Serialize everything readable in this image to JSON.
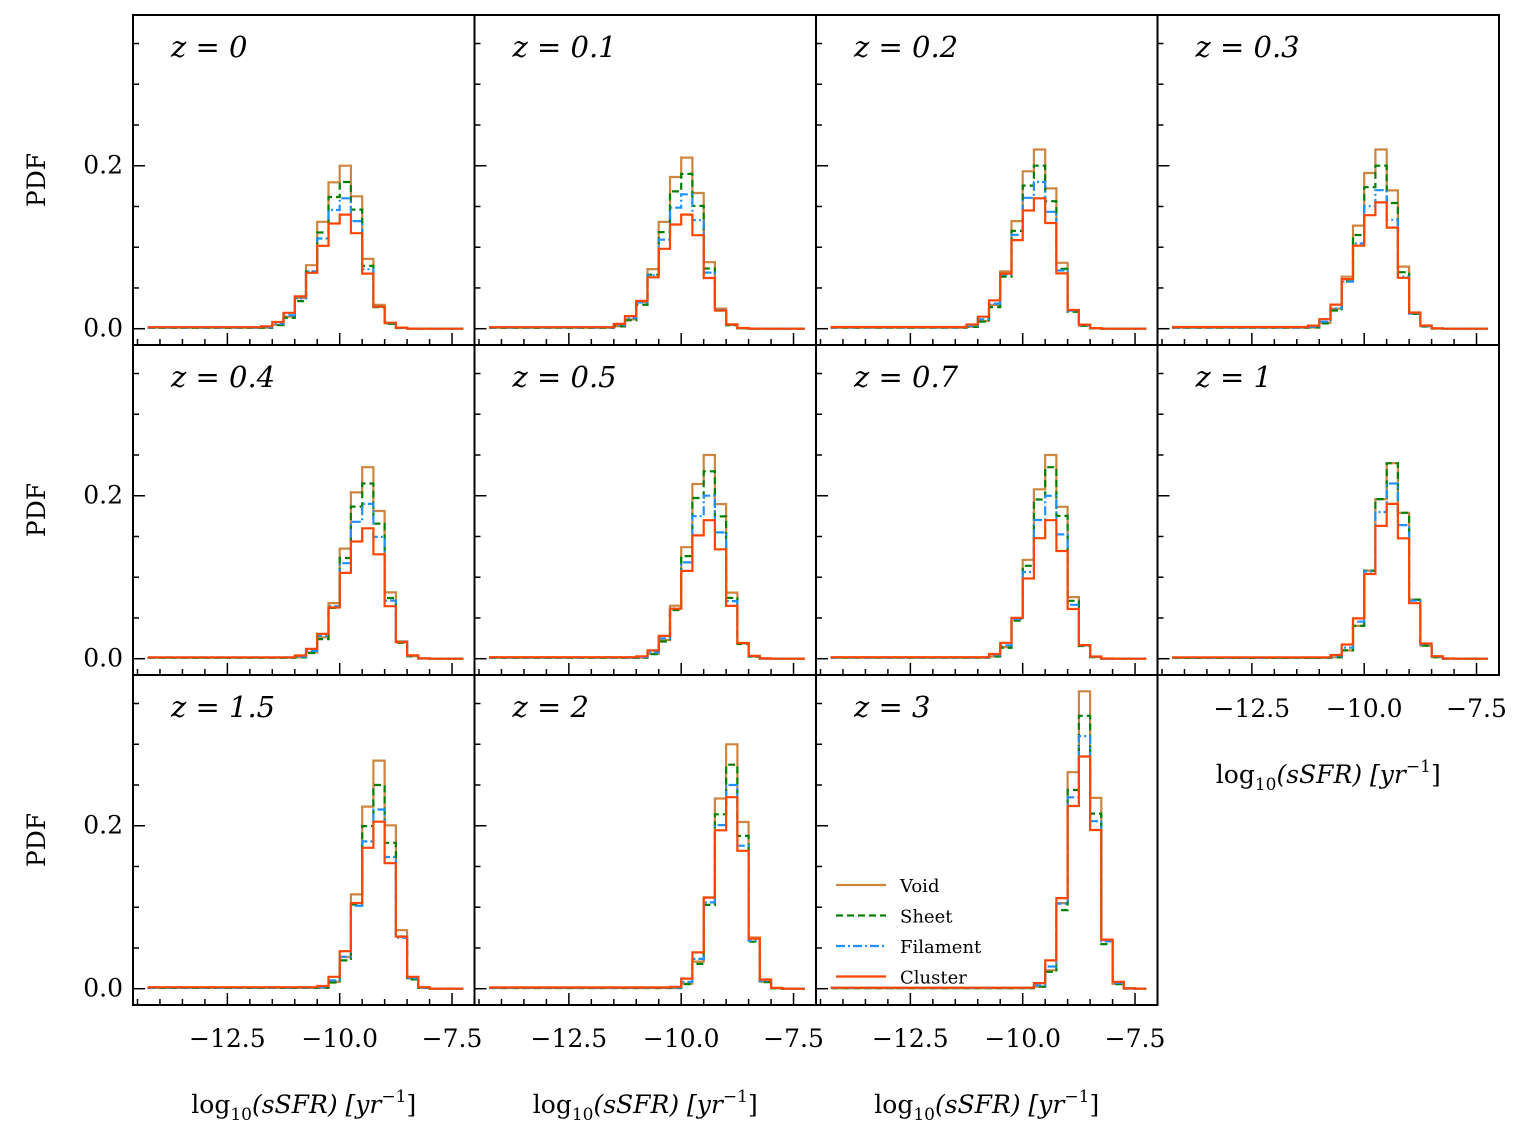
{
  "chart_data": {
    "type": "histogram-grid",
    "rows": 3,
    "cols": 4,
    "ylabel": "PDF",
    "xlabel": "log10(sSFR) [yr^-1]",
    "xlabel_parts": {
      "pre": "log",
      "sub": "10",
      "mid": "(sSFR) [yr",
      "sup": "−1",
      "post": "]"
    },
    "xlim": [
      -14.6,
      -7.0
    ],
    "ylim": [
      -0.02,
      0.385
    ],
    "xticks": [
      -12.5,
      -10.0,
      -7.5
    ],
    "xtick_labels": [
      "−12.5",
      "−10.0",
      "−7.5"
    ],
    "yticks": [
      0.0,
      0.2
    ],
    "ytick_labels": [
      "0.0",
      "0.2"
    ],
    "bin_start": -14.25,
    "bin_width": 0.25,
    "n_bins": 28,
    "series_styles": [
      {
        "name": "Void",
        "color": "#cd853f",
        "dash": ""
      },
      {
        "name": "Sheet",
        "color": "#008000",
        "dash": "7,4"
      },
      {
        "name": "Filament",
        "color": "#1e90ff",
        "dash": "9,3,2,3"
      },
      {
        "name": "Cluster",
        "color": "#ff4500",
        "dash": ""
      }
    ],
    "legend": {
      "position": "lower-left",
      "panel": "z = 3",
      "entries": [
        "Void",
        "Sheet",
        "Filament",
        "Cluster"
      ]
    },
    "panels": [
      {
        "label": "z = 0",
        "peak_x": -9.87,
        "sigma_l": 0.55,
        "sigma_r": 0.38,
        "tail": 0.006,
        "peaks": [
          0.2,
          0.18,
          0.16,
          0.14
        ]
      },
      {
        "label": "z = 0.1",
        "peak_x": -9.87,
        "sigma_l": 0.52,
        "sigma_r": 0.36,
        "tail": 0.006,
        "peaks": [
          0.21,
          0.19,
          0.165,
          0.14
        ]
      },
      {
        "label": "z = 0.2",
        "peak_x": -9.62,
        "sigma_l": 0.5,
        "sigma_r": 0.35,
        "tail": 0.006,
        "peaks": [
          0.22,
          0.2,
          0.18,
          0.16
        ]
      },
      {
        "label": "z = 0.3",
        "peak_x": -9.62,
        "sigma_l": 0.48,
        "sigma_r": 0.34,
        "tail": 0.006,
        "peaks": [
          0.22,
          0.2,
          0.17,
          0.155
        ]
      },
      {
        "label": "z = 0.4",
        "peak_x": -9.37,
        "sigma_l": 0.48,
        "sigma_r": 0.34,
        "tail": 0.005,
        "peaks": [
          0.235,
          0.215,
          0.19,
          0.16
        ]
      },
      {
        "label": "z = 0.5",
        "peak_x": -9.37,
        "sigma_l": 0.46,
        "sigma_r": 0.33,
        "tail": 0.005,
        "peaks": [
          0.25,
          0.23,
          0.2,
          0.17
        ]
      },
      {
        "label": "z = 0.7",
        "peak_x": -9.37,
        "sigma_l": 0.42,
        "sigma_r": 0.32,
        "tail": 0.005,
        "peaks": [
          0.25,
          0.235,
          0.2,
          0.17
        ]
      },
      {
        "label": "z = 1",
        "peak_x": -9.37,
        "sigma_l": 0.4,
        "sigma_r": 0.32,
        "tail": 0.004,
        "peaks": [
          0.24,
          0.24,
          0.215,
          0.19
        ]
      },
      {
        "label": "z = 1.5",
        "peak_x": -9.12,
        "sigma_l": 0.38,
        "sigma_r": 0.3,
        "tail": 0.004,
        "peaks": [
          0.28,
          0.25,
          0.22,
          0.205
        ]
      },
      {
        "label": "z = 2",
        "peak_x": -8.87,
        "sigma_l": 0.36,
        "sigma_r": 0.28,
        "tail": 0.003,
        "peaks": [
          0.3,
          0.275,
          0.25,
          0.235
        ]
      },
      {
        "label": "z = 3",
        "peak_x": -8.62,
        "sigma_l": 0.32,
        "sigma_r": 0.26,
        "tail": 0.002,
        "peaks": [
          0.365,
          0.335,
          0.31,
          0.285
        ]
      }
    ]
  }
}
